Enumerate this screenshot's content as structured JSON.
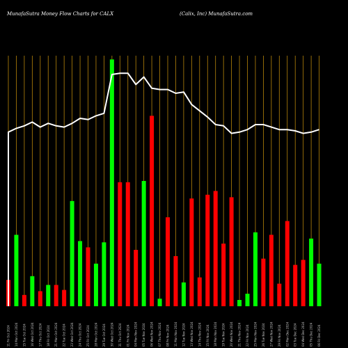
{
  "header": {
    "left": "MunafaSutra  Money Flow  Charts for CALX",
    "right": "(Calix,  Inc) MunafaSutra.com"
  },
  "colors": {
    "background": "#000000",
    "gridline": "#b8860b",
    "up_bar": "#00ff00",
    "down_bar": "#ff0000",
    "line": "#ffffff"
  },
  "chart_data": {
    "type": "bar",
    "categories": [
      "11 Fri Oct 2024",
      "14 Mon Oct 2024",
      "15 Tue Oct 2024",
      "16 Wed Oct 2024",
      "17 Thu Oct 2024",
      "18 Fri Oct 2024",
      "21 Mon Oct 2024",
      "22 Tue Oct 2024",
      "23 Wed Oct 2024",
      "24 Thu Oct 2024",
      "25 Fri Oct 2024",
      "28 Mon Oct 2024",
      "29 Tue Oct 2024",
      "30 Wed Oct 2024",
      "31 Thu Oct 2024",
      "01 Fri Nov 2024",
      "04 Mon Nov 2024",
      "05 Tue Nov 2024",
      "06 Wed Nov 2024",
      "07 Thu Nov 2024",
      "08 Fri Nov 2024",
      "11 Mon Nov 2024",
      "12 Tue Nov 2024",
      "13 Wed Nov 2024",
      "14 Thu Nov 2024",
      "15 Fri Nov 2024",
      "18 Mon Nov 2024",
      "19 Tue Nov 2024",
      "20 Wed Nov 2024",
      "21 Thu Nov 2024",
      "22 Fri Nov 2024",
      "25 Mon Nov 2024",
      "26 Tue Nov 2024",
      "27 Wed Nov 2024",
      "29 Fri Nov 2024",
      "02 Mon Dec 2024",
      "03 Tue Dec 2024",
      "04 Wed Dec 2024",
      "05 Thu Dec 2024",
      "06 Fri Dec 2024"
    ],
    "x_tick_labels": [
      "11 Fri Oct 2024",
      "14 Mon Oct 2024",
      "15 Tue Oct 2024",
      "16 Wed Oct 2024",
      "17 Thu Oct 2024",
      "18 Fri Oct 2024",
      "21 Mon Oct 2024",
      "22 Tue Oct 2024",
      "23 Wed Oct 2024",
      "24 Thu Oct 2024",
      "25 Fri Oct 2024",
      "28 Mon Oct 2024",
      "29 Tue Oct 2024",
      "30 Wed Oct 2024",
      "31 Thu Oct 2024",
      "01 Fri Nov 2024",
      "04 Mon Nov 2024",
      "05 Tue Nov 2024",
      "06 Wed Nov 2024",
      "07 Thu Nov 2024",
      "08 Fri Nov 2024",
      "11 Mon Nov 2024",
      "12 Tue Nov 2024",
      "13 Wed Nov 2024",
      "14 Thu Nov 2024",
      "15 Fri Nov 2024",
      "18 Mon Nov 2024",
      "19 Tue Nov 2024",
      "20 Wed Nov 2024",
      "21 Thu Nov 2024",
      "22 Fri Nov 2024",
      "25 Mon Nov 2024",
      "26 Tue Nov 2024",
      "27 Wed Nov 2024",
      "29 Fri Nov 2024",
      "02 Mon Dec 2024",
      "03 Tue Dec 2024",
      "04 Wed Dec 2024",
      "05 Thu Dec 2024",
      "06 Fri Dec 2024"
    ],
    "series": [
      {
        "kind": "money_flow_bars",
        "values": [
          10.5,
          28.5,
          4.5,
          12,
          6,
          8.5,
          8.5,
          6.5,
          42,
          26,
          23.5,
          17,
          25.5,
          98.5,
          49.5,
          49.5,
          22.5,
          50,
          76,
          3,
          35.5,
          20,
          9.5,
          43,
          11.5,
          44.5,
          46,
          25,
          43.5,
          2.5,
          5,
          29.5,
          19,
          28.5,
          9,
          34,
          16.5,
          18.5,
          27,
          17
        ],
        "directions": [
          "down",
          "up",
          "down",
          "up",
          "down",
          "up",
          "down",
          "down",
          "up",
          "up",
          "down",
          "up",
          "up",
          "up",
          "down",
          "down",
          "down",
          "up",
          "down",
          "up",
          "down",
          "down",
          "up",
          "down",
          "down",
          "down",
          "down",
          "down",
          "down",
          "up",
          "up",
          "up",
          "down",
          "down",
          "down",
          "down",
          "down",
          "down",
          "up",
          "up"
        ]
      },
      {
        "kind": "price_line",
        "values": [
          69.5,
          71,
          72,
          73.5,
          71.5,
          73,
          72,
          71.5,
          73,
          75,
          74.5,
          76,
          77,
          92.5,
          93,
          93,
          88.5,
          91.5,
          87,
          86.5,
          86.5,
          85,
          85.5,
          80.5,
          78,
          75.5,
          72.5,
          72,
          69,
          69.5,
          70.5,
          72.5,
          72.5,
          71.5,
          70.5,
          70.5,
          70,
          69,
          69.5,
          70.5
        ]
      }
    ],
    "ylim": [
      0,
      100
    ],
    "grid": "vertical"
  }
}
